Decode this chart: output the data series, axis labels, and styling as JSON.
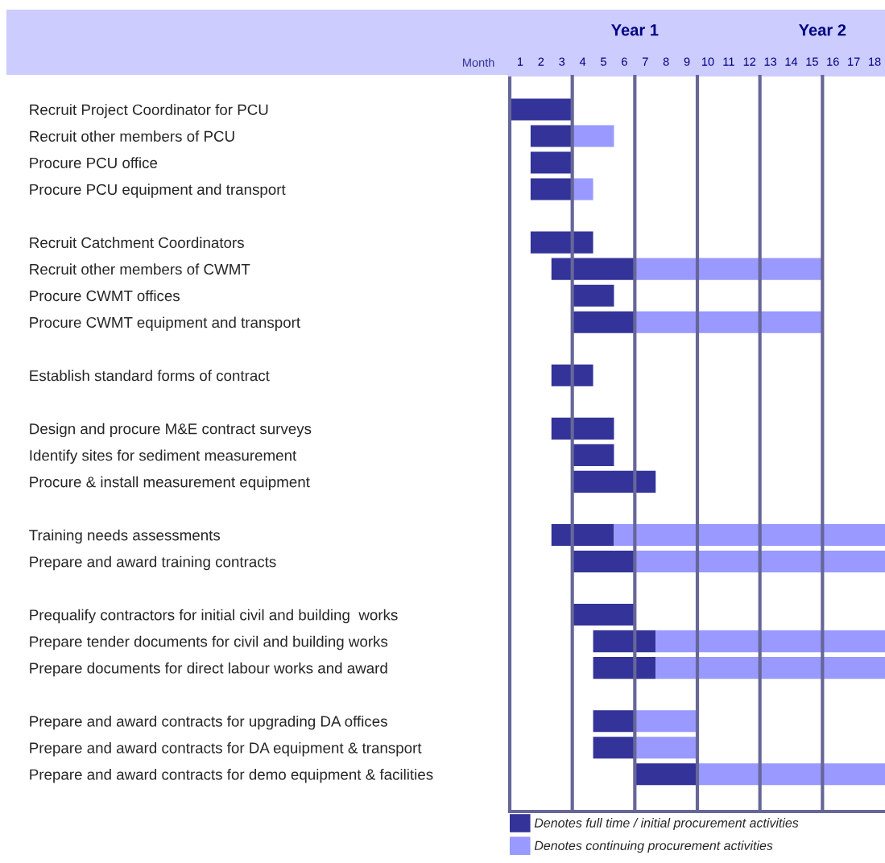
{
  "chart_data": {
    "type": "bar",
    "orientation": "horizontal",
    "categories": [
      "Recruit Project Coordinator for PCU",
      "Recruit other members of PCU",
      "Procure PCU office",
      "Procure PCU equipment and transport",
      null,
      "Recruit Catchment Coordinators",
      "Recruit other members of CWMT",
      "Procure CWMT offices",
      "Procure CWMT equipment and transport",
      null,
      "Establish standard forms of contract",
      null,
      "Design and procure M&E contract surveys",
      "Identify sites for sediment measurement",
      "Procure & install measurement equipment",
      null,
      "Training needs assessments",
      "Prepare and award training contracts",
      null,
      "Prequalify contractors for initial civil and building  works",
      "Prepare tender documents for civil and building works",
      "Prepare documents for direct labour works and award",
      null,
      "Prepare and award contracts for upgrading DA offices",
      "Prepare and award contracts for DA equipment & transport",
      "Prepare and award contracts for demo equipment & facilities"
    ],
    "series": [
      {
        "name": "Denotes full time / initial procurement activities",
        "color": "#333399",
        "base": [
          0,
          1,
          1,
          1,
          null,
          1,
          2,
          3,
          3,
          null,
          2,
          null,
          2,
          3,
          3,
          null,
          2,
          3,
          null,
          3,
          4,
          4,
          null,
          4,
          4,
          6
        ],
        "values": [
          3,
          2,
          2,
          2,
          null,
          3,
          4,
          2,
          3,
          null,
          2,
          null,
          3,
          2,
          4,
          null,
          3,
          3,
          null,
          3,
          3,
          3,
          null,
          2,
          2,
          3
        ]
      },
      {
        "name": "Denotes continuing procurement activities",
        "color": "#9999ff",
        "base": [
          null,
          3,
          null,
          3,
          null,
          null,
          6,
          null,
          6,
          null,
          null,
          null,
          null,
          null,
          null,
          null,
          5,
          6,
          null,
          null,
          7,
          7,
          null,
          6,
          6,
          9
        ],
        "values": [
          null,
          2,
          null,
          1,
          null,
          null,
          9,
          null,
          9,
          null,
          null,
          null,
          null,
          null,
          null,
          null,
          13,
          12,
          null,
          null,
          11,
          11,
          null,
          3,
          3,
          9
        ]
      }
    ],
    "xlabel": "Month",
    "xlim": [
      0,
      18
    ],
    "xticks": [
      {
        "value": 0.5,
        "label": "1"
      },
      {
        "value": 1.5,
        "label": "2"
      },
      {
        "value": 2.5,
        "label": "3"
      },
      {
        "value": 3.5,
        "label": "4"
      },
      {
        "value": 4.5,
        "label": "5"
      },
      {
        "value": 5.5,
        "label": "6"
      },
      {
        "value": 6.5,
        "label": "7"
      },
      {
        "value": 7.5,
        "label": "8"
      },
      {
        "value": 8.5,
        "label": "9"
      },
      {
        "value": 9.5,
        "label": "10"
      },
      {
        "value": 10.5,
        "label": "11"
      },
      {
        "value": 11.5,
        "label": "12"
      },
      {
        "value": 12.5,
        "label": "13"
      },
      {
        "value": 13.5,
        "label": "14"
      },
      {
        "value": 14.5,
        "label": "15"
      },
      {
        "value": 15.5,
        "label": "16"
      },
      {
        "value": 16.5,
        "label": "17"
      },
      {
        "value": 17.5,
        "label": "18"
      }
    ],
    "annotations": [
      "Year 1",
      "Year 2"
    ],
    "ref_lines": [
      {
        "axis": "x",
        "value": 3,
        "color": "#666699"
      },
      {
        "axis": "x",
        "value": 6,
        "color": "#666699"
      },
      {
        "axis": "x",
        "value": 9,
        "color": "#666699"
      },
      {
        "axis": "x",
        "value": 12,
        "color": "#666699"
      },
      {
        "axis": "x",
        "value": 15,
        "color": "#666699"
      }
    ],
    "grid": false,
    "legend": "bottom"
  }
}
